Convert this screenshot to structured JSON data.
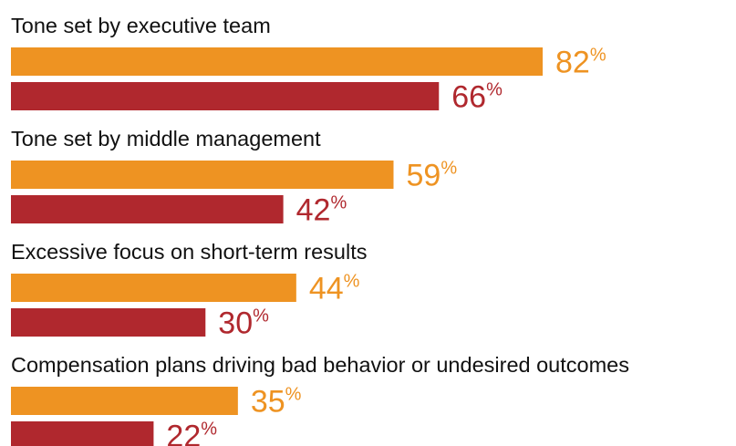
{
  "chart_data": {
    "type": "bar",
    "orientation": "horizontal",
    "categories": [
      "Tone set by executive team",
      "Tone set by middle management",
      "Excessive focus on short-term results",
      "Compensation plans driving bad behavior or undesired outcomes"
    ],
    "series": [
      {
        "color": "#ee9322",
        "values": [
          82,
          59,
          44,
          35
        ],
        "value_labels": [
          "82%",
          "59%",
          "44%",
          "35%"
        ]
      },
      {
        "color": "#b0282e",
        "values": [
          66,
          42,
          30,
          22
        ],
        "value_labels": [
          "66%",
          "42%",
          "30%",
          "22%"
        ]
      }
    ],
    "xlim": [
      0,
      100
    ]
  }
}
